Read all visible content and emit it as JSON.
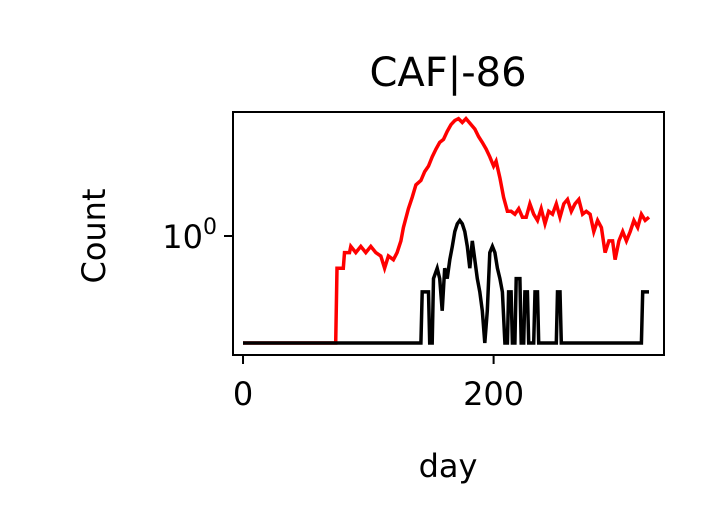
{
  "chart_data": {
    "type": "line",
    "title": "CAF|-86",
    "xlabel": "day",
    "ylabel": "Count",
    "yscale": "log",
    "xlim": [
      -8,
      336
    ],
    "xticks": [
      {
        "value": 0,
        "label": "0"
      },
      {
        "value": 200,
        "label": "200"
      }
    ],
    "yticks": [
      {
        "value": 1,
        "label_base": "10",
        "label_exp": "0"
      }
    ],
    "grid": false,
    "legend": "none",
    "series": [
      {
        "color": "#ff0000",
        "points": [
          [
            0,
            0.1
          ],
          [
            74,
            0.1
          ],
          [
            75,
            0.5
          ],
          [
            80,
            0.5
          ],
          [
            81,
            0.7
          ],
          [
            85,
            0.7
          ],
          [
            86,
            0.8
          ],
          [
            90,
            0.7
          ],
          [
            94,
            0.8
          ],
          [
            98,
            0.7
          ],
          [
            102,
            0.8
          ],
          [
            106,
            0.7
          ],
          [
            110,
            0.65
          ],
          [
            113,
            0.5
          ],
          [
            116,
            0.65
          ],
          [
            120,
            0.6
          ],
          [
            123,
            0.7
          ],
          [
            126,
            0.9
          ],
          [
            128,
            1.2
          ],
          [
            132,
            1.8
          ],
          [
            135,
            2.3
          ],
          [
            138,
            3.0
          ],
          [
            142,
            3.3
          ],
          [
            145,
            4.0
          ],
          [
            148,
            4.5
          ],
          [
            151,
            5.5
          ],
          [
            154,
            6.5
          ],
          [
            157,
            7.5
          ],
          [
            160,
            8.0
          ],
          [
            163,
            9.5
          ],
          [
            166,
            11.0
          ],
          [
            169,
            12.0
          ],
          [
            172,
            12.5
          ],
          [
            175,
            11.5
          ],
          [
            178,
            12.5
          ],
          [
            182,
            11.0
          ],
          [
            185,
            10.0
          ],
          [
            188,
            8.5
          ],
          [
            191,
            7.5
          ],
          [
            194,
            6.5
          ],
          [
            197,
            5.5
          ],
          [
            200,
            4.5
          ],
          [
            202,
            5.0
          ],
          [
            205,
            3.5
          ],
          [
            208,
            2.3
          ],
          [
            211,
            1.7
          ],
          [
            214,
            1.7
          ],
          [
            217,
            1.6
          ],
          [
            220,
            1.8
          ],
          [
            223,
            1.5
          ],
          [
            226,
            1.5
          ],
          [
            229,
            2.0
          ],
          [
            232,
            1.6
          ],
          [
            235,
            1.4
          ],
          [
            238,
            1.8
          ],
          [
            241,
            1.3
          ],
          [
            244,
            1.7
          ],
          [
            247,
            1.6
          ],
          [
            250,
            2.0
          ],
          [
            253,
            1.5
          ],
          [
            256,
            2.0
          ],
          [
            259,
            2.2
          ],
          [
            262,
            1.7
          ],
          [
            265,
            2.0
          ],
          [
            268,
            2.2
          ],
          [
            271,
            1.6
          ],
          [
            274,
            1.7
          ],
          [
            277,
            1.6
          ],
          [
            280,
            1.1
          ],
          [
            283,
            1.4
          ],
          [
            286,
            1.2
          ],
          [
            289,
            0.7
          ],
          [
            292,
            0.9
          ],
          [
            295,
            0.9
          ],
          [
            297,
            0.6
          ],
          [
            300,
            0.9
          ],
          [
            303,
            1.1
          ],
          [
            306,
            0.9
          ],
          [
            309,
            1.1
          ],
          [
            312,
            1.4
          ],
          [
            315,
            1.2
          ],
          [
            318,
            1.6
          ],
          [
            321,
            1.4
          ],
          [
            324,
            1.5
          ]
        ]
      },
      {
        "color": "#000000",
        "points": [
          [
            0,
            0.1
          ],
          [
            142,
            0.1
          ],
          [
            143,
            0.3
          ],
          [
            148,
            0.3
          ],
          [
            149,
            0.1
          ],
          [
            151,
            0.1
          ],
          [
            152,
            0.4
          ],
          [
            155,
            0.5
          ],
          [
            157,
            0.4
          ],
          [
            159,
            0.2
          ],
          [
            161,
            0.5
          ],
          [
            163,
            0.4
          ],
          [
            165,
            0.6
          ],
          [
            167,
            0.8
          ],
          [
            169,
            1.1
          ],
          [
            171,
            1.3
          ],
          [
            173,
            1.4
          ],
          [
            175,
            1.3
          ],
          [
            177,
            1.1
          ],
          [
            179,
            0.8
          ],
          [
            181,
            0.5
          ],
          [
            183,
            0.9
          ],
          [
            185,
            0.6
          ],
          [
            187,
            0.4
          ],
          [
            189,
            0.3
          ],
          [
            191,
            0.2
          ],
          [
            193,
            0.1
          ],
          [
            195,
            0.2
          ],
          [
            197,
            0.7
          ],
          [
            199,
            0.8
          ],
          [
            201,
            0.7
          ],
          [
            203,
            0.5
          ],
          [
            205,
            0.4
          ],
          [
            207,
            0.3
          ],
          [
            209,
            0.1
          ],
          [
            211,
            0.1
          ],
          [
            212,
            0.3
          ],
          [
            214,
            0.3
          ],
          [
            215,
            0.1
          ],
          [
            217,
            0.1
          ],
          [
            218,
            0.4
          ],
          [
            221,
            0.4
          ],
          [
            222,
            0.1
          ],
          [
            224,
            0.1
          ],
          [
            225,
            0.3
          ],
          [
            227,
            0.3
          ],
          [
            228,
            0.1
          ],
          [
            232,
            0.1
          ],
          [
            233,
            0.3
          ],
          [
            235,
            0.3
          ],
          [
            236,
            0.1
          ],
          [
            250,
            0.1
          ],
          [
            251,
            0.3
          ],
          [
            253,
            0.3
          ],
          [
            254,
            0.1
          ],
          [
            318,
            0.1
          ],
          [
            319,
            0.3
          ],
          [
            324,
            0.3
          ]
        ]
      }
    ]
  }
}
